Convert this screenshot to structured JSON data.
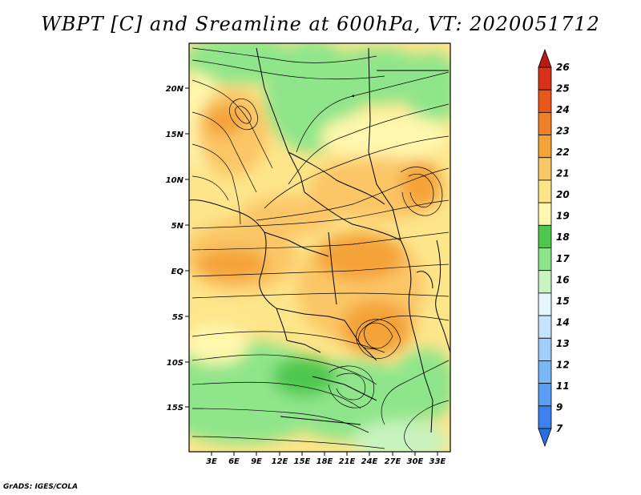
{
  "title": "WBPT [C] and Sreamline at 600hPa, VT: 2020051712",
  "credit": "GrADS: IGES/COLA",
  "lat_labels": [
    "20N",
    "15N",
    "10N",
    "5N",
    "EQ",
    "5S",
    "10S",
    "15S"
  ],
  "lon_labels": [
    "3E",
    "6E",
    "9E",
    "12E",
    "15E",
    "18E",
    "21E",
    "24E",
    "27E",
    "30E",
    "33E"
  ],
  "colorbar": {
    "labels": [
      "7",
      "9",
      "11",
      "12",
      "13",
      "14",
      "15",
      "16",
      "17",
      "18",
      "19",
      "20",
      "21",
      "22",
      "23",
      "24",
      "25",
      "26"
    ],
    "colors": [
      "#2a6fe0",
      "#3b82ee",
      "#5a9ef5",
      "#7ab7f9",
      "#a0cffc",
      "#c6e4fd",
      "#e4f5fd",
      "#c8f3c0",
      "#8fe58a",
      "#4dc74d",
      "#fff7ad",
      "#fde58a",
      "#fbc666",
      "#f4a337",
      "#ef7f25",
      "#e8581c",
      "#d8321a",
      "#b81a14"
    ]
  },
  "fields": {
    "wet_bulb_potential_temperature": "WBPT [C]",
    "streamline_level": "600hPa",
    "valid_time": "2020051712"
  }
}
